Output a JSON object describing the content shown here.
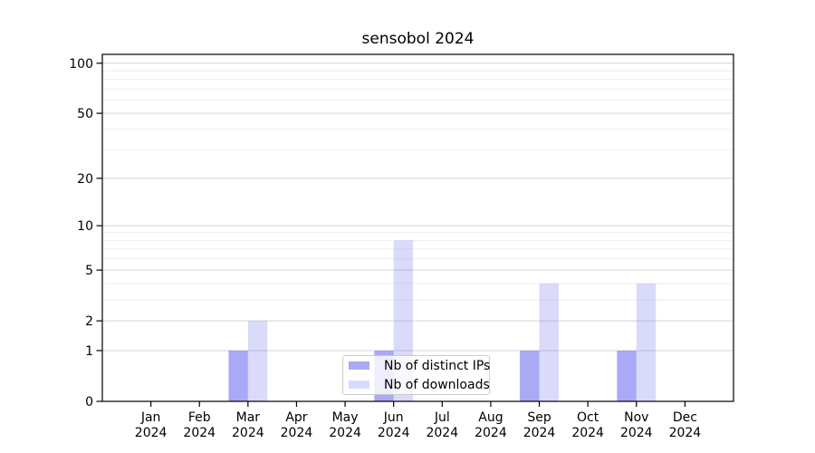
{
  "chart_data": {
    "type": "bar",
    "title": "sensobol 2024",
    "categories": [
      "Jan 2024",
      "Feb 2024",
      "Mar 2024",
      "Apr 2024",
      "May 2024",
      "Jun 2024",
      "Jul 2024",
      "Aug 2024",
      "Sep 2024",
      "Oct 2024",
      "Nov 2024",
      "Dec 2024"
    ],
    "series": [
      {
        "name": "Nb of distinct IPs",
        "fill": "rgba(125,125,240,0.66)",
        "perceived_color": "#a9a9f6",
        "values": [
          0,
          0,
          1,
          0,
          0,
          1,
          0,
          0,
          1,
          0,
          1,
          0
        ]
      },
      {
        "name": "Nb of downloads",
        "fill": "rgba(125,125,240,0.285)",
        "perceived_color": "#dadaf8",
        "values": [
          0,
          0,
          2,
          0,
          0,
          8,
          0,
          0,
          4,
          0,
          4,
          0
        ]
      }
    ],
    "xlabel": "",
    "ylabel": "",
    "yscale": "log1p",
    "ylim": [
      0,
      113
    ],
    "y_ticks": [
      0,
      1,
      2,
      5,
      10,
      20,
      50,
      100
    ],
    "y_minor_gridlines": [
      3,
      4,
      6,
      7,
      8,
      9,
      30,
      40,
      60,
      70,
      80,
      90
    ],
    "grid": "horizontal",
    "legend_position": "lower center",
    "colors": {
      "grid_major": "#d4d4d4",
      "grid_minor": "#eeeeee",
      "axis": "#000000",
      "text": "#000000",
      "legend_border": "#cccccc"
    }
  }
}
